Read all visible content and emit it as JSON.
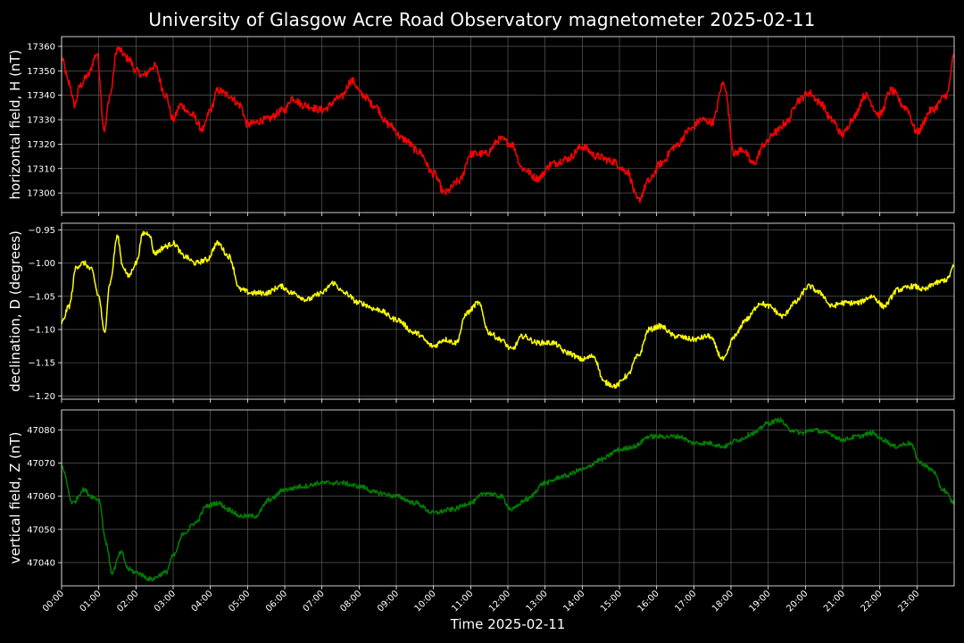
{
  "title": "University of Glasgow Acre Road Observatory magnetometer 2025-02-11",
  "xlabel": "Time 2025-02-11",
  "colors": {
    "background": "#000000",
    "grid": "#6a6a6a",
    "text": "#ffffff"
  },
  "chart_data": [
    {
      "type": "line",
      "ylabel": "horizontal field, H (nT)",
      "color": "#ff0000",
      "ylim": [
        17292,
        17364
      ],
      "yticks": [
        17300,
        17310,
        17320,
        17330,
        17340,
        17350,
        17360
      ],
      "x_hours": [
        0,
        0.2,
        0.35,
        0.5,
        0.7,
        0.95,
        1.15,
        1.3,
        1.5,
        1.8,
        2.0,
        2.2,
        2.5,
        2.8,
        3.0,
        3.2,
        3.5,
        3.8,
        4.0,
        4.2,
        4.5,
        4.8,
        5.0,
        5.5,
        6.0,
        6.2,
        6.5,
        7.0,
        7.5,
        7.8,
        8.1,
        8.4,
        8.8,
        9.2,
        9.6,
        10.0,
        10.3,
        10.7,
        11.0,
        11.4,
        11.8,
        12.1,
        12.4,
        12.8,
        13.2,
        13.6,
        14.0,
        14.4,
        14.8,
        15.2,
        15.5,
        15.8,
        16.1,
        16.5,
        16.9,
        17.2,
        17.5,
        17.8,
        18.1,
        18.3,
        18.6,
        18.9,
        19.2,
        19.5,
        19.8,
        20.1,
        20.4,
        20.7,
        21.0,
        21.3,
        21.6,
        22.0,
        22.3,
        22.7,
        23.0,
        23.4,
        23.8,
        24.0
      ],
      "values": [
        17355,
        17345,
        17336,
        17344,
        17348,
        17357,
        17326,
        17340,
        17359,
        17355,
        17350,
        17348,
        17352,
        17340,
        17330,
        17336,
        17332,
        17326,
        17334,
        17342,
        17340,
        17336,
        17328,
        17330,
        17334,
        17339,
        17336,
        17334,
        17339,
        17346,
        17340,
        17336,
        17328,
        17322,
        17317,
        17308,
        17300,
        17305,
        17316,
        17316,
        17322,
        17320,
        17310,
        17306,
        17312,
        17314,
        17319,
        17315,
        17313,
        17309,
        17297,
        17305,
        17312,
        17319,
        17326,
        17330,
        17329,
        17345,
        17316,
        17318,
        17312,
        17320,
        17325,
        17329,
        17338,
        17341,
        17337,
        17330,
        17324,
        17331,
        17340,
        17332,
        17342,
        17335,
        17325,
        17334,
        17340,
        17356
      ],
      "noise": 1.6
    },
    {
      "type": "line",
      "ylabel": "declination, D (degrees)",
      "color": "#ffff00",
      "ylim": [
        -1.205,
        -0.94
      ],
      "yticks": [
        -0.95,
        -1.0,
        -1.05,
        -1.1,
        -1.15,
        -1.2
      ],
      "ytick_labels": [
        "−0.95",
        "−1.00",
        "−1.05",
        "−1.10",
        "−1.15",
        "−1.20"
      ],
      "x_hours": [
        0,
        0.2,
        0.4,
        0.6,
        0.8,
        1.0,
        1.15,
        1.3,
        1.5,
        1.65,
        1.8,
        2.0,
        2.2,
        2.35,
        2.5,
        2.8,
        3.0,
        3.3,
        3.6,
        3.9,
        4.2,
        4.5,
        4.8,
        5.1,
        5.5,
        5.9,
        6.2,
        6.6,
        7.0,
        7.3,
        7.6,
        8.0,
        8.5,
        9.0,
        9.5,
        10.0,
        10.3,
        10.6,
        10.9,
        11.2,
        11.5,
        11.8,
        12.1,
        12.4,
        12.8,
        13.2,
        13.6,
        14.0,
        14.3,
        14.6,
        14.9,
        15.2,
        15.5,
        15.8,
        16.1,
        16.5,
        17.0,
        17.4,
        17.8,
        18.1,
        18.4,
        18.8,
        19.0,
        19.4,
        19.7,
        20.1,
        20.4,
        20.7,
        21.0,
        21.4,
        21.8,
        22.1,
        22.5,
        22.9,
        23.2,
        23.5,
        23.8,
        24.0
      ],
      "values": [
        -1.09,
        -1.065,
        -1.005,
        -1.0,
        -1.01,
        -1.05,
        -1.105,
        -1.03,
        -0.96,
        -1.005,
        -1.02,
        -1.0,
        -0.955,
        -0.955,
        -0.985,
        -0.975,
        -0.97,
        -0.99,
        -1.0,
        -0.995,
        -0.97,
        -0.99,
        -1.04,
        -1.045,
        -1.045,
        -1.035,
        -1.045,
        -1.055,
        -1.045,
        -1.03,
        -1.045,
        -1.06,
        -1.07,
        -1.085,
        -1.105,
        -1.125,
        -1.115,
        -1.12,
        -1.075,
        -1.06,
        -1.105,
        -1.115,
        -1.13,
        -1.11,
        -1.12,
        -1.12,
        -1.135,
        -1.145,
        -1.14,
        -1.18,
        -1.185,
        -1.17,
        -1.14,
        -1.1,
        -1.095,
        -1.11,
        -1.115,
        -1.11,
        -1.145,
        -1.11,
        -1.085,
        -1.06,
        -1.065,
        -1.08,
        -1.06,
        -1.035,
        -1.045,
        -1.065,
        -1.06,
        -1.06,
        -1.05,
        -1.065,
        -1.04,
        -1.035,
        -1.04,
        -1.03,
        -1.025,
        -1.005
      ],
      "noise": 0.004
    },
    {
      "type": "line",
      "ylabel": "vertical field, Z (nT)",
      "color": "#008000",
      "ylim": [
        47033,
        47086
      ],
      "yticks": [
        47040,
        47050,
        47060,
        47070,
        47080
      ],
      "x_hours": [
        0,
        0.3,
        0.6,
        0.8,
        1.0,
        1.2,
        1.35,
        1.6,
        1.8,
        2.0,
        2.4,
        2.8,
        3.0,
        3.3,
        3.6,
        3.9,
        4.2,
        4.5,
        4.8,
        5.2,
        5.6,
        6.0,
        6.5,
        7.0,
        7.5,
        8.0,
        8.5,
        9.0,
        9.5,
        10.0,
        10.5,
        11.0,
        11.4,
        11.8,
        12.1,
        12.5,
        13.0,
        13.5,
        14.0,
        14.5,
        15.0,
        15.4,
        15.8,
        16.2,
        16.6,
        17.0,
        17.4,
        17.8,
        18.2,
        18.6,
        19.0,
        19.3,
        19.6,
        19.9,
        20.2,
        20.6,
        21.0,
        21.4,
        21.8,
        22.1,
        22.4,
        22.8,
        23.1,
        23.4,
        23.7,
        24.0
      ],
      "values": [
        47069,
        47058,
        47062,
        47060,
        47059,
        47046,
        47037,
        47043,
        47038,
        47037,
        47035,
        47037,
        47042,
        47049,
        47052,
        47057,
        47058,
        47056,
        47054,
        47054,
        47059,
        47062,
        47063,
        47064,
        47064,
        47063,
        47061,
        47060,
        47058,
        47055,
        47056,
        47058,
        47061,
        47060,
        47056,
        47059,
        47064,
        47066,
        47068,
        47071,
        47074,
        47075,
        47078,
        47078,
        47078,
        47076,
        47076,
        47075,
        47077,
        47079,
        47082,
        47083,
        47080,
        47079,
        47080,
        47079,
        47077,
        47078,
        47079,
        47077,
        47075,
        47076,
        47070,
        47068,
        47062,
        47058
      ],
      "noise": 0.7
    }
  ],
  "x_ticks": [
    "00:00",
    "01:00",
    "02:00",
    "03:00",
    "04:00",
    "05:00",
    "06:00",
    "07:00",
    "08:00",
    "09:00",
    "10:00",
    "11:00",
    "12:00",
    "13:00",
    "14:00",
    "15:00",
    "16:00",
    "17:00",
    "18:00",
    "19:00",
    "20:00",
    "21:00",
    "22:00",
    "23:00"
  ],
  "x_range_hours": [
    0,
    24
  ]
}
